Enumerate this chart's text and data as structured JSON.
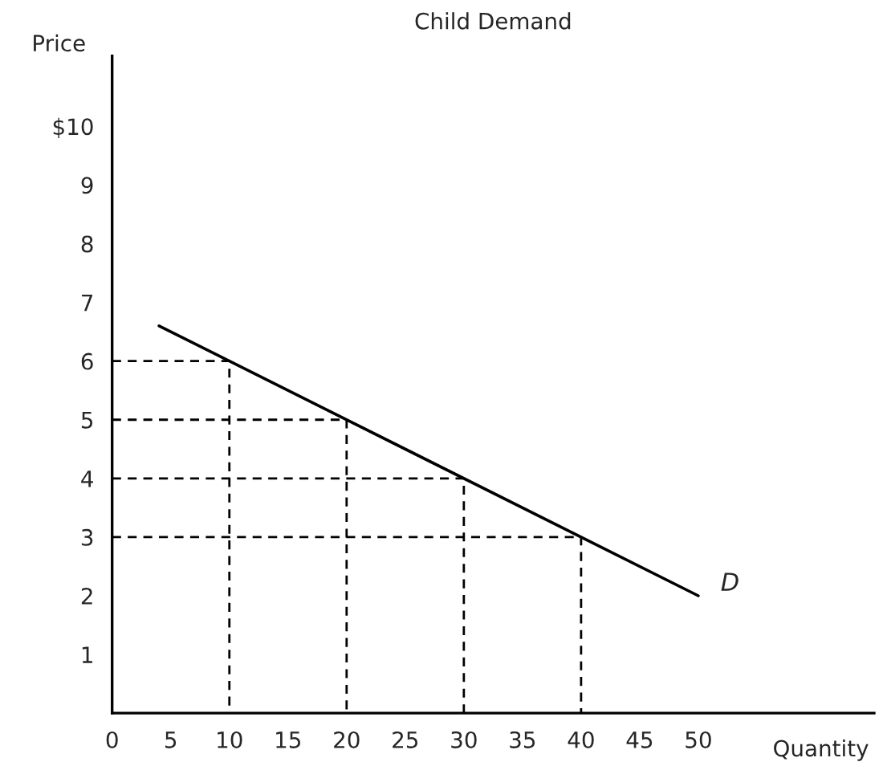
{
  "chart_data": {
    "type": "line",
    "title": "Child Demand",
    "xlabel": "Quantity",
    "ylabel": "Price",
    "xlim": [
      0,
      65
    ],
    "ylim": [
      0,
      11.2
    ],
    "xticks": [
      0,
      5,
      10,
      15,
      20,
      25,
      30,
      35,
      40,
      45,
      50
    ],
    "yticks": [
      1,
      2,
      3,
      4,
      5,
      6,
      7,
      8,
      9,
      {
        "value": 10,
        "label": "$10"
      }
    ],
    "grid": false,
    "legend": false,
    "series": [
      {
        "x": [
          4,
          50
        ],
        "values": [
          6.6,
          2
        ],
        "color": "#000000",
        "line_style": "solid"
      },
      {
        "x": [
          0,
          10,
          10
        ],
        "values": [
          6,
          6,
          0
        ],
        "color": "#000000",
        "line_style": "dashed"
      },
      {
        "x": [
          0,
          20,
          20
        ],
        "values": [
          5,
          5,
          0
        ],
        "color": "#000000",
        "line_style": "dashed"
      },
      {
        "x": [
          0,
          30,
          30
        ],
        "values": [
          4,
          4,
          0
        ],
        "color": "#000000",
        "line_style": "dashed"
      },
      {
        "x": [
          0,
          40,
          40
        ],
        "values": [
          3,
          3,
          0
        ],
        "color": "#000000",
        "line_style": "dashed"
      }
    ],
    "annotations": [
      {
        "text": "D",
        "x": 50,
        "y": 2
      }
    ]
  }
}
